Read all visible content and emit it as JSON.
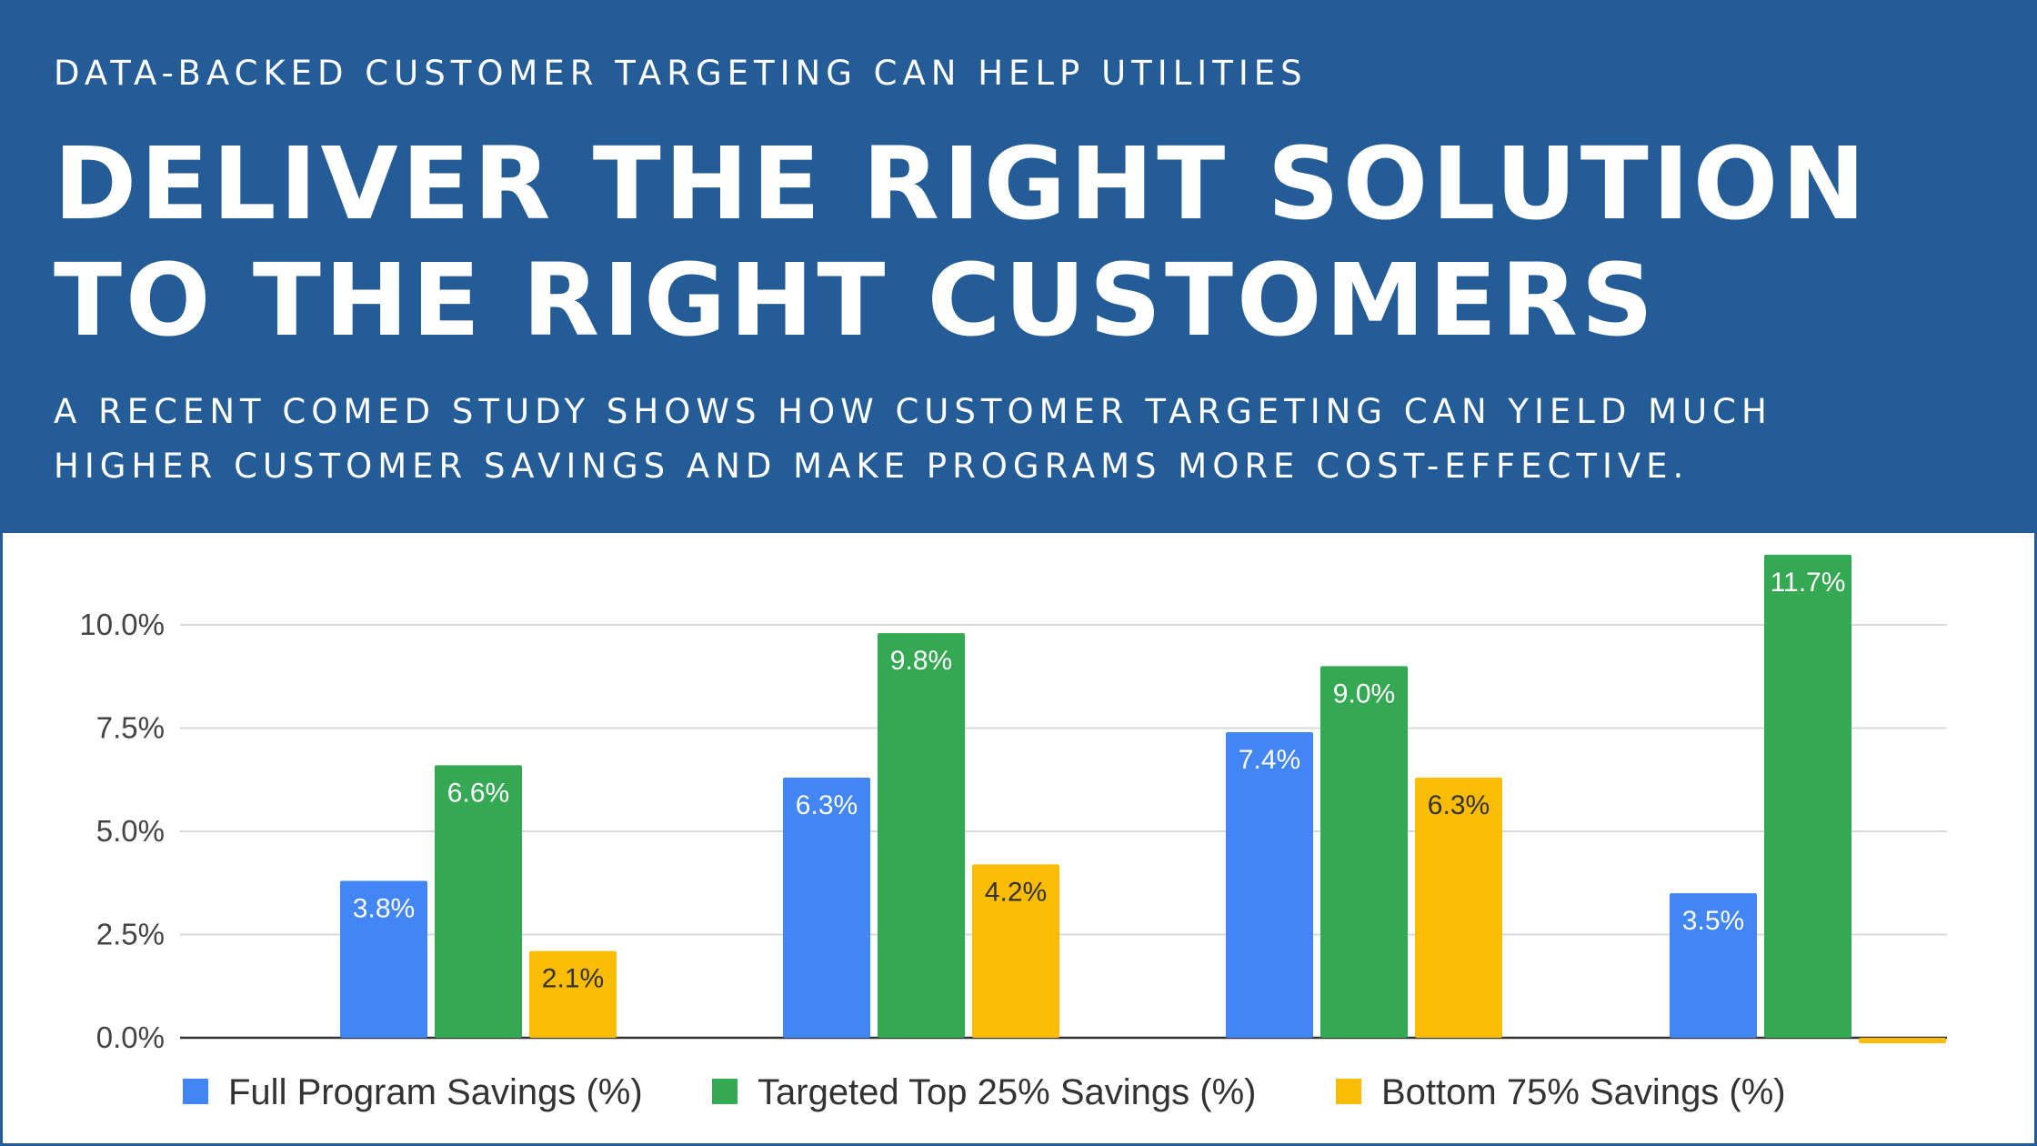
{
  "header": {
    "kicker": "DATA-BACKED CUSTOMER TARGETING CAN HELP UTILITIES",
    "headline_line1": "DELIVER THE RIGHT SOLUTION",
    "headline_line2": "TO THE RIGHT CUSTOMERS",
    "subline_line1": "A RECENT COMED STUDY SHOWS HOW CUSTOMER TARGETING CAN YIELD MUCH",
    "subline_line2": "HIGHER CUSTOMER SAVINGS AND MAKE PROGRAMS MORE COST-EFFECTIVE."
  },
  "colors": {
    "banner": "#245c97",
    "full": "#4285f4",
    "top25": "#34a853",
    "bottom75": "#fbbc04"
  },
  "chart_data": {
    "type": "bar",
    "title": "",
    "xlabel": "",
    "ylabel": "",
    "categories": [
      "",
      "",
      "",
      ""
    ],
    "ylim": [
      0,
      12
    ],
    "yticks": [
      0,
      2.5,
      5,
      7.5,
      10
    ],
    "ytick_labels": [
      "0.0%",
      "2.5%",
      "5.0%",
      "7.5%",
      "10.0%"
    ],
    "grid": true,
    "legend_position": "bottom",
    "series": [
      {
        "name": "Full Program Savings (%)",
        "color": "#4285f4",
        "values": [
          3.8,
          6.3,
          7.4,
          3.5
        ],
        "labels": [
          "3.8%",
          "6.3%",
          "7.4%",
          "3.5%"
        ],
        "label_color": "#ffffff"
      },
      {
        "name": "Targeted Top 25% Savings (%)",
        "color": "#34a853",
        "values": [
          6.6,
          9.8,
          9.0,
          11.7
        ],
        "labels": [
          "6.6%",
          "9.8%",
          "9.0%",
          "11.7%"
        ],
        "label_color": "#ffffff"
      },
      {
        "name": "Bottom 75% Savings (%)",
        "color": "#fbbc04",
        "values": [
          2.1,
          4.2,
          6.3,
          -0.1
        ],
        "labels": [
          "2.1%",
          "4.2%",
          "6.3%",
          ""
        ],
        "label_color": "#333333"
      }
    ]
  }
}
